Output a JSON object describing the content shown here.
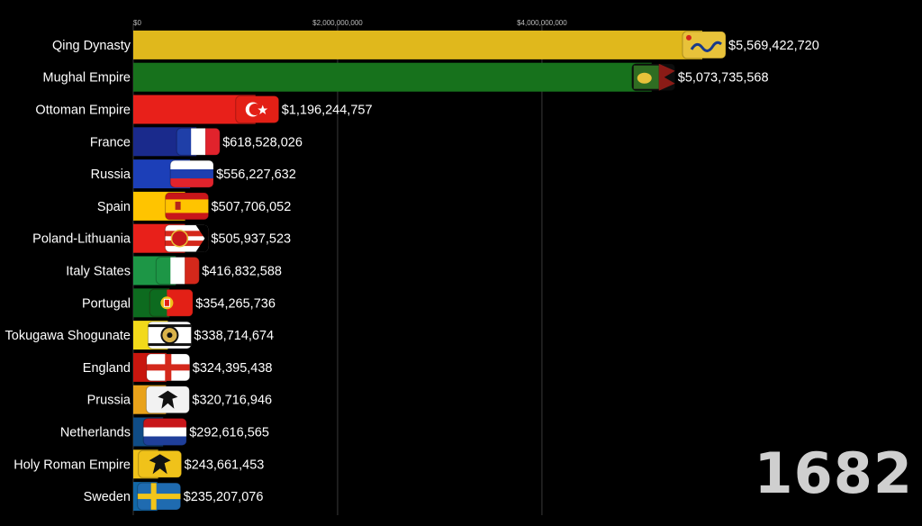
{
  "year_label": "1682",
  "chart_data": {
    "type": "bar",
    "orientation": "horizontal",
    "title": "",
    "xlabel": "",
    "ylabel": "",
    "xlim": [
      0,
      7600000000
    ],
    "x_ticks": [
      {
        "value": 0,
        "label": "$0"
      },
      {
        "value": 2000000000,
        "label": "$2,000,000,000"
      },
      {
        "value": 4000000000,
        "label": "$4,000,000,000"
      }
    ],
    "grid": true,
    "categories": [
      "Qing Dynasty",
      "Mughal Empire",
      "Ottoman Empire",
      "France",
      "Russia",
      "Spain",
      "Poland-Lithuania",
      "Italy States",
      "Portugal",
      "Tokugawa Shogunate",
      "England",
      "Prussia",
      "Netherlands",
      "Holy Roman Empire",
      "Sweden"
    ],
    "values": [
      5569422720,
      5073735568,
      1196244757,
      618528026,
      556227632,
      507706052,
      505937523,
      416832588,
      354265736,
      338714674,
      324395438,
      320716946,
      292616565,
      243661453,
      235207076
    ],
    "value_labels": [
      "$5,569,422,720",
      "$5,073,735,568",
      "$1,196,244,757",
      "$618,528,026",
      "$556,227,632",
      "$507,706,052",
      "$505,937,523",
      "$416,832,588",
      "$354,265,736",
      "$338,714,674",
      "$324,395,438",
      "$320,716,946",
      "$292,616,565",
      "$243,661,453",
      "$235,207,076"
    ],
    "colors": [
      "#e0b81c",
      "#17721c",
      "#e8201a",
      "#1a2a8c",
      "#1c3fb8",
      "#ffc400",
      "#e8201a",
      "#1d9646",
      "#0d6b1f",
      "#f2d91a",
      "#c8160e",
      "#e9a21a",
      "#0f4c86",
      "#f0c21a",
      "#1268a8"
    ],
    "flags": [
      "qing-dragon-flag",
      "mughal-lion-flag",
      "turkey-crescent-flag",
      "france-tricolor-flag",
      "russia-tricolor-flag",
      "spain-flag",
      "poland-lithuania-flag",
      "italy-tricolor-flag",
      "portugal-flag",
      "tokugawa-mon-flag",
      "england-cross-flag",
      "prussia-eagle-flag",
      "netherlands-tricolor-flag",
      "hre-eagle-flag",
      "sweden-cross-flag"
    ]
  }
}
